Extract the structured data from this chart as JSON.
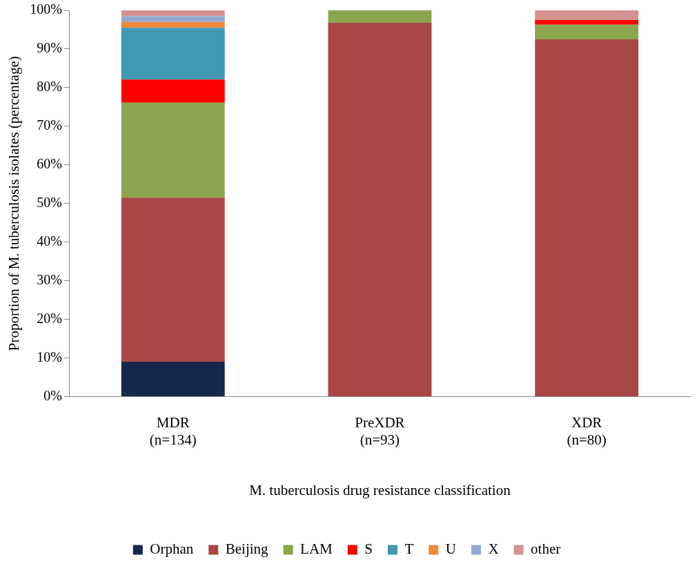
{
  "chart_data": {
    "type": "bar",
    "stacked": true,
    "xlabel": "M. tuberculosis drug resistance classification",
    "ylabel": "Proportion of M. tuberculosis isolates (percentage)",
    "categories": [
      "MDR\n(n=134)",
      "PreXDR\n(n=93)",
      "XDR\n(n=80)"
    ],
    "series": [
      {
        "name": "Orphan",
        "color": "#17294a",
        "values": [
          9.0,
          0,
          0
        ]
      },
      {
        "name": "Beijing",
        "color": "#a84845",
        "values": [
          42.5,
          96.8,
          92.5
        ]
      },
      {
        "name": "LAM",
        "color": "#8ba64e",
        "values": [
          24.6,
          3.2,
          3.8
        ]
      },
      {
        "name": "S",
        "color": "#fe0000",
        "values": [
          6.0,
          0,
          1.2
        ]
      },
      {
        "name": "T",
        "color": "#4198b1",
        "values": [
          13.4,
          0,
          0
        ]
      },
      {
        "name": "U",
        "color": "#ec8a3c",
        "values": [
          1.5,
          0,
          0
        ]
      },
      {
        "name": "X",
        "color": "#93a9d1",
        "values": [
          1.5,
          0,
          0
        ]
      },
      {
        "name": "other",
        "color": "#d49393",
        "values": [
          1.5,
          0,
          2.5
        ]
      }
    ],
    "ylim": [
      0,
      100
    ],
    "yticks": [
      {
        "value": 0,
        "label": "0%"
      },
      {
        "value": 10,
        "label": "10%"
      },
      {
        "value": 20,
        "label": "20%"
      },
      {
        "value": 30,
        "label": "30%"
      },
      {
        "value": 40,
        "label": "40%"
      },
      {
        "value": 50,
        "label": "50%"
      },
      {
        "value": 60,
        "label": "60%"
      },
      {
        "value": 70,
        "label": "70%"
      },
      {
        "value": 80,
        "label": "80%"
      },
      {
        "value": 90,
        "label": "90%"
      },
      {
        "value": 100,
        "label": "100%"
      }
    ],
    "grid": false,
    "legend": "bottom"
  }
}
